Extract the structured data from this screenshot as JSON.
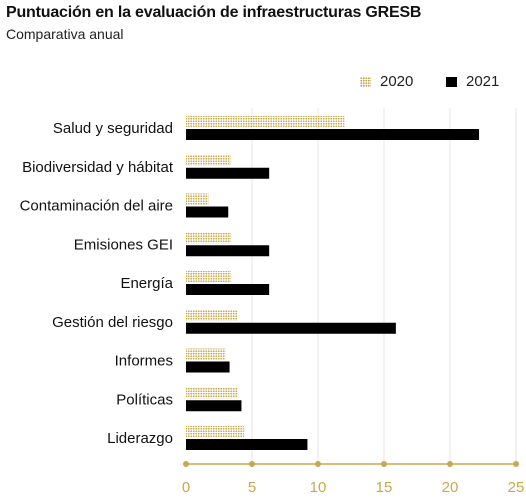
{
  "chart_data": {
    "type": "bar",
    "orientation": "horizontal",
    "title": "Puntuación en la evaluación de infraestructuras GRESB",
    "subtitle": "Comparativa anual",
    "categories": [
      "Salud y seguridad",
      "Biodiversidad y hábitat",
      "Contaminación del aire",
      "Emisiones GEI",
      "Energía",
      "Gestión del riesgo",
      "Informes",
      "Políticas",
      "Liderazgo"
    ],
    "series": [
      {
        "name": "2020",
        "color": "#c8a84e",
        "pattern": "dotted",
        "values": [
          12,
          3.4,
          1.7,
          3.4,
          3.4,
          3.9,
          3.0,
          3.9,
          4.4
        ]
      },
      {
        "name": "2021",
        "color": "#000000",
        "pattern": "solid",
        "values": [
          22.2,
          6.3,
          3.2,
          6.3,
          6.3,
          15.9,
          3.3,
          4.2,
          9.2
        ]
      }
    ],
    "xlim": [
      0,
      25
    ],
    "xticks": [
      0,
      5,
      10,
      15,
      20,
      25
    ],
    "xlabel": "",
    "ylabel": "",
    "legend_position": "top-right",
    "grid": "vertical",
    "axis_color": "#c8a84e"
  }
}
